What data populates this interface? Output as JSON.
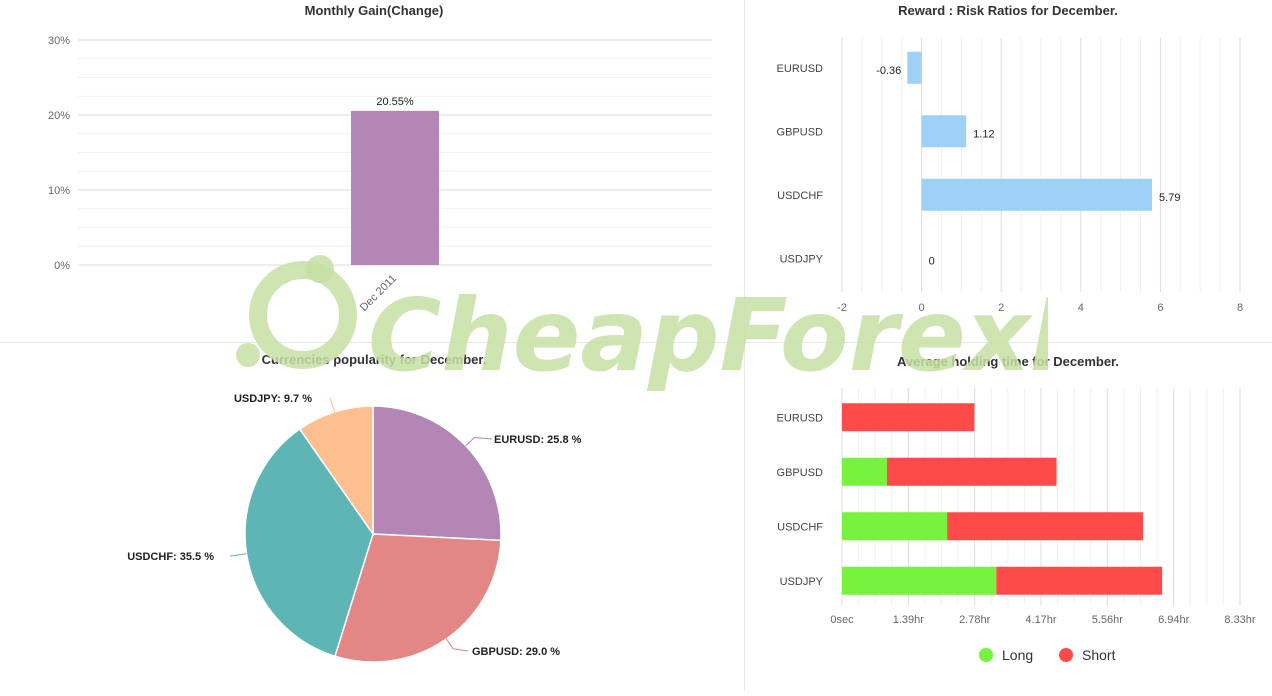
{
  "colors": {
    "gain_bar": "#b386b6",
    "ratio_bar": "#9fd0f5",
    "pie": [
      "#b386b6",
      "#e28686",
      "#5db5b6",
      "#fdbf90"
    ],
    "long": "#77f23f",
    "short": "#ff4a4a",
    "grid": "#e6e6e6"
  },
  "charts": {
    "gain": {
      "type": "bar",
      "title": "Monthly Gain(Change)",
      "categories": [
        "Dec 2011"
      ],
      "values": [
        20.55
      ],
      "data_labels": [
        "20.55%"
      ],
      "ylim": [
        0,
        30
      ],
      "yticks": [
        "0%",
        "10%",
        "20%",
        "30%"
      ]
    },
    "ratio": {
      "type": "bar",
      "orientation": "horizontal",
      "title": "Reward : Risk Ratios for December.",
      "categories": [
        "EURUSD",
        "GBPUSD",
        "USDCHF",
        "USDJPY"
      ],
      "values": [
        -0.36,
        1.12,
        5.79,
        0
      ],
      "data_labels": [
        "-0.36",
        "1.12",
        "5.79",
        "0"
      ],
      "xlim": [
        -2,
        8
      ],
      "xticks": [
        "-2",
        "0",
        "2",
        "4",
        "6",
        "8"
      ]
    },
    "pie": {
      "type": "pie",
      "title": "Currencies popularity for December.",
      "slices": [
        {
          "name": "EURUSD",
          "value": 25.8,
          "label": "EURUSD: 25.8 %"
        },
        {
          "name": "GBPUSD",
          "value": 29.0,
          "label": "GBPUSD: 29.0 %"
        },
        {
          "name": "USDCHF",
          "value": 35.5,
          "label": "USDCHF: 35.5 %"
        },
        {
          "name": "USDJPY",
          "value": 9.7,
          "label": "USDJPY: 9.7 %"
        }
      ]
    },
    "hold": {
      "type": "bar",
      "orientation": "horizontal",
      "stacked": true,
      "title": "Average holding time for December.",
      "categories": [
        "EURUSD",
        "GBPUSD",
        "USDCHF",
        "USDJPY"
      ],
      "series": [
        {
          "name": "Long",
          "values": [
            0,
            0.94,
            2.2,
            3.23
          ]
        },
        {
          "name": "Short",
          "values": [
            2.77,
            3.55,
            4.1,
            3.47
          ]
        }
      ],
      "unit": "hr",
      "xlim": [
        0,
        8.33
      ],
      "xticks": [
        "0sec",
        "1.39hr",
        "2.78hr",
        "4.17hr",
        "5.56hr",
        "6.94hr",
        "8.33hr"
      ],
      "legend_position": "bottom"
    }
  },
  "watermark": {
    "text": "CheapForexEa",
    "color": "#c6e0a4"
  }
}
